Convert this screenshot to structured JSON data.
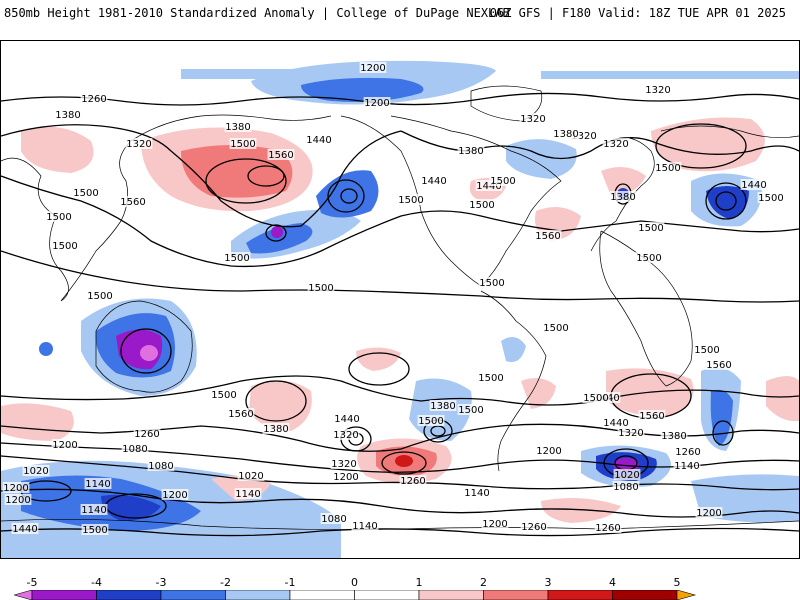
{
  "header": {
    "left": "850mb Height 1981-2010 Standardized Anomaly | College of DuPage NEXLAB",
    "right": "06Z GFS | F180 Valid: 18Z TUE APR 01 2025"
  },
  "colors": {
    "minus5": "#e070e0",
    "minus4": "#9a19c8",
    "minus3": "#1f3fc8",
    "minus2": "#3f74e6",
    "minus1": "#a8c8f4",
    "zero": "#ffffff",
    "plus1": "#f8c8c8",
    "plus2": "#f07a7a",
    "plus3": "#d01818",
    "plus4": "#a00000",
    "plus5": "#f4a000",
    "contour": "#000000",
    "coastline": "#000000"
  },
  "colorbar": {
    "labels": [
      "-5",
      "-4",
      "-3",
      "-2",
      "-1",
      "0",
      "1",
      "2",
      "3",
      "4",
      "5"
    ],
    "segments": [
      "#e070e0",
      "#9a19c8",
      "#1f3fc8",
      "#3f74e6",
      "#a8c8f4",
      "#ffffff",
      "#ffffff",
      "#f8c8c8",
      "#f07a7a",
      "#d01818",
      "#a00000",
      "#f4a000"
    ]
  },
  "contour_labels": [
    "1200",
    "1200",
    "1260",
    "1320",
    "1380",
    "1320",
    "1380",
    "1500",
    "1440",
    "1560",
    "1320",
    "1320",
    "1380",
    "1320",
    "1380",
    "1440",
    "1500",
    "1440",
    "1500",
    "1560",
    "1500",
    "1500",
    "1380",
    "1500",
    "1440",
    "1500",
    "1500",
    "1560",
    "1500",
    "1500",
    "1500",
    "1500",
    "1500",
    "1500",
    "1500",
    "1500",
    "1500",
    "1560",
    "1440",
    "1500",
    "1560",
    "1380",
    "1440",
    "1500",
    "1500",
    "1500",
    "1380",
    "1500",
    "1560",
    "1440",
    "1320",
    "1380",
    "1260",
    "1320",
    "1200",
    "1260",
    "1080",
    "1020",
    "1140",
    "1080",
    "1140",
    "1200",
    "1320",
    "1200",
    "1260",
    "1200",
    "1080",
    "1020",
    "1140",
    "1140",
    "1020",
    "1140",
    "1200",
    "1200",
    "1080",
    "1140",
    "1200",
    "1260",
    "1200",
    "1260",
    "1440",
    "1500"
  ]
}
